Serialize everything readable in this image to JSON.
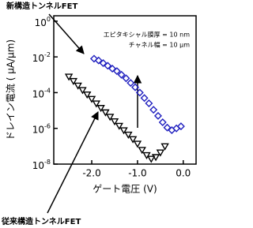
{
  "chart_data": {
    "type": "scatter",
    "xlabel": "ゲート電圧 (V)",
    "ylabel": "ドレイン電流 ( μA/μm)",
    "annotations": [
      "新構造トンネルFET",
      "従来構造トンネルFET",
      "エピタキシャル膜厚 = 10 nm",
      "チャネル幅 = 10 μm"
    ],
    "ylog": true,
    "xlim": [
      -2.83,
      0.28
    ],
    "ylim": [
      1e-08,
      2
    ],
    "xticks": [
      {
        "value": -2,
        "label": "-2.0"
      },
      {
        "value": -1,
        "label": "-1.0"
      },
      {
        "value": 0,
        "label": "0.0"
      }
    ],
    "yticks": [
      {
        "value": 1e-08,
        "label": "10",
        "sup": "-8"
      },
      {
        "value": 1e-06,
        "label": "10",
        "sup": "-6"
      },
      {
        "value": 0.0001,
        "label": "10",
        "sup": "-4"
      },
      {
        "value": 0.01,
        "label": "10",
        "sup": "-2"
      },
      {
        "value": 1,
        "label": "10",
        "sup": "0"
      }
    ],
    "series": [
      {
        "name": "新構造トンネルFET",
        "color": "#1f1fbf",
        "marker": "diamond",
        "x": [
          -1.95,
          -1.85,
          -1.75,
          -1.65,
          -1.55,
          -1.45,
          -1.35,
          -1.25,
          -1.15,
          -1.05,
          -0.95,
          -0.85,
          -0.75,
          -0.65,
          -0.55,
          -0.45,
          -0.35,
          -0.25,
          -0.15,
          -0.05
        ],
        "values": [
          0.0079,
          0.0063,
          0.0045,
          0.0032,
          0.0022,
          0.0016,
          0.001,
          0.00063,
          0.00035,
          0.0002,
          0.0001,
          5e-05,
          2.5e-05,
          1.1e-05,
          5e-06,
          2.2e-06,
          1.1e-06,
          7.9e-07,
          1e-06,
          1.3e-06
        ]
      },
      {
        "name": "従来構造トンネルFET",
        "color": "#000000",
        "marker": "triangle-down",
        "x": [
          -2.5,
          -2.4,
          -2.3,
          -2.2,
          -2.1,
          -2.0,
          -1.9,
          -1.8,
          -1.7,
          -1.6,
          -1.5,
          -1.4,
          -1.3,
          -1.2,
          -1.1,
          -1.0,
          -0.9,
          -0.8,
          -0.7,
          -0.6,
          -0.5,
          -0.4
        ],
        "values": [
          0.00079,
          0.00045,
          0.00025,
          0.00014,
          7.9e-05,
          4.5e-05,
          2.5e-05,
          1.4e-05,
          7.9e-06,
          4.5e-06,
          2.5e-06,
          1.4e-06,
          7.9e-07,
          4.5e-07,
          2.5e-07,
          1.4e-07,
          6.3e-08,
          3.2e-08,
          2e-08,
          2.5e-08,
          4.5e-08,
          1e-07
        ]
      }
    ]
  }
}
